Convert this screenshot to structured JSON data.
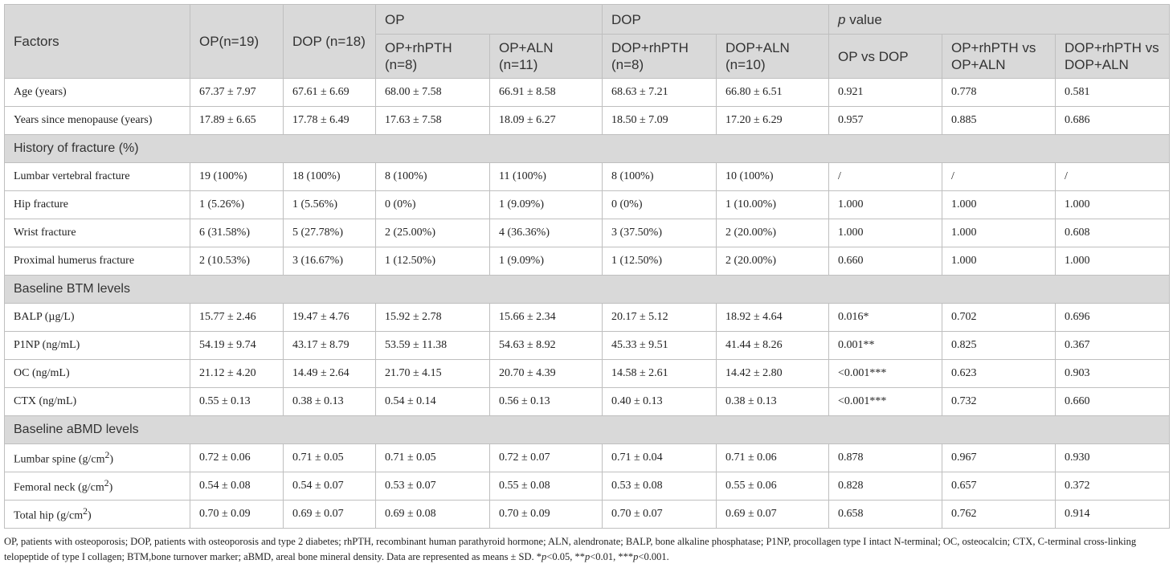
{
  "header": {
    "factors": "Factors",
    "op": "OP(n=19)",
    "dop": "DOP (n=18)",
    "group_op": "OP",
    "group_dop": "DOP",
    "group_p_italic": "p",
    "group_p_rest": " value",
    "op_rhpth": "OP+rhPTH (n=8)",
    "op_aln": "OP+ALN (n=11)",
    "dop_rhpth": "DOP+rhPTH (n=8)",
    "dop_aln": "DOP+ALN (n=10)",
    "p_op_dop": "OP vs DOP",
    "p_op_rh_aln": "OP+rhPTH vs OP+ALN",
    "p_dop_rh_aln": "DOP+rhPTH vs DOP+ALN"
  },
  "rows": {
    "age": {
      "label": "Age (years)",
      "v": [
        "67.37 ± 7.97",
        "67.61 ± 6.69",
        "68.00 ± 7.58",
        "66.91 ± 8.58",
        "68.63 ± 7.21",
        "66.80 ± 6.51",
        "0.921",
        "0.778",
        "0.581"
      ]
    },
    "menopause": {
      "label": "Years since menopause (years)",
      "v": [
        "17.89 ± 6.65",
        "17.78 ± 6.49",
        "17.63 ± 7.58",
        "18.09 ± 6.27",
        "18.50 ± 7.09",
        "17.20 ± 6.29",
        "0.957",
        "0.885",
        "0.686"
      ]
    },
    "sec_fracture": "History of fracture (%)",
    "lumbar_fracture": {
      "label": "Lumbar vertebral fracture",
      "v": [
        "19 (100%)",
        "18 (100%)",
        "8 (100%)",
        "11 (100%)",
        "8 (100%)",
        "10 (100%)",
        "/",
        "/",
        "/"
      ]
    },
    "hip_fracture": {
      "label": "Hip fracture",
      "v": [
        "1 (5.26%)",
        "1 (5.56%)",
        "0 (0%)",
        "1 (9.09%)",
        "0 (0%)",
        "1 (10.00%)",
        "1.000",
        "1.000",
        "1.000"
      ]
    },
    "wrist_fracture": {
      "label": "Wrist fracture",
      "v": [
        "6 (31.58%)",
        "5 (27.78%)",
        "2 (25.00%)",
        "4 (36.36%)",
        "3 (37.50%)",
        "2 (20.00%)",
        "1.000",
        "1.000",
        "0.608"
      ]
    },
    "humerus_fracture": {
      "label": "Proximal humerus fracture",
      "v": [
        "2 (10.53%)",
        "3 (16.67%)",
        "1 (12.50%)",
        "1 (9.09%)",
        "1 (12.50%)",
        "2 (20.00%)",
        "0.660",
        "1.000",
        "1.000"
      ]
    },
    "sec_btm": "Baseline BTM levels",
    "balp": {
      "label": "BALP (µg/L)",
      "v": [
        "15.77 ± 2.46",
        "19.47 ± 4.76",
        "15.92 ± 2.78",
        "15.66 ± 2.34",
        "20.17 ± 5.12",
        "18.92 ± 4.64",
        "0.016*",
        "0.702",
        "0.696"
      ]
    },
    "p1np": {
      "label": "P1NP (ng/mL)",
      "v": [
        "54.19 ± 9.74",
        "43.17 ± 8.79",
        "53.59 ± 11.38",
        "54.63 ± 8.92",
        "45.33 ± 9.51",
        "41.44 ± 8.26",
        "0.001**",
        "0.825",
        "0.367"
      ]
    },
    "oc": {
      "label": "OC (ng/mL)",
      "v": [
        "21.12 ± 4.20",
        "14.49 ± 2.64",
        "21.70 ± 4.15",
        "20.70 ± 4.39",
        "14.58 ± 2.61",
        "14.42 ± 2.80",
        "<0.001***",
        "0.623",
        "0.903"
      ]
    },
    "ctx": {
      "label": "CTX (ng/mL)",
      "v": [
        "0.55 ± 0.13",
        "0.38 ± 0.13",
        "0.54 ± 0.14",
        "0.56 ± 0.13",
        "0.40 ± 0.13",
        "0.38 ± 0.13",
        "<0.001***",
        "0.732",
        "0.660"
      ]
    },
    "sec_abmd": "Baseline aBMD levels",
    "lumbar_spine": {
      "label_pre": "Lumbar spine (g/cm",
      "label_sup": "2",
      "label_post": ")",
      "v": [
        "0.72 ± 0.06",
        "0.71 ± 0.05",
        "0.71 ± 0.05",
        "0.72 ± 0.07",
        "0.71 ± 0.04",
        "0.71 ± 0.06",
        "0.878",
        "0.967",
        "0.930"
      ]
    },
    "femoral_neck": {
      "label_pre": "Femoral neck (g/cm",
      "label_sup": "2",
      "label_post": ")",
      "v": [
        "0.54 ± 0.08",
        "0.54 ± 0.07",
        "0.53 ± 0.07",
        "0.55 ± 0.08",
        "0.53 ± 0.08",
        "0.55 ± 0.06",
        "0.828",
        "0.657",
        "0.372"
      ]
    },
    "total_hip": {
      "label_pre": "Total hip (g/cm",
      "label_sup": "2",
      "label_post": ")",
      "v": [
        "0.70 ± 0.09",
        "0.69 ± 0.07",
        "0.69 ± 0.08",
        "0.70 ± 0.09",
        "0.70 ± 0.07",
        "0.69 ± 0.07",
        "0.658",
        "0.762",
        "0.914"
      ]
    }
  },
  "footnote": {
    "main": "OP, patients with osteoporosis; DOP, patients with osteoporosis and type 2 diabetes; rhPTH, recombinant human parathyroid hormone; ALN, alendronate; BALP, bone alkaline phosphatase; P1NP, procollagen type I intact N-terminal; OC, osteocalcin; CTX, C-terminal cross-linking telopeptide of type I collagen; BTM,bone turnover marker; aBMD, areal bone mineral density. Data are represented as means ± SD. *",
    "p1": "p",
    "s1": "<0.05, **",
    "p2": "p",
    "s2": "<0.01, ***",
    "p3": "p",
    "s3": "<0.001."
  }
}
